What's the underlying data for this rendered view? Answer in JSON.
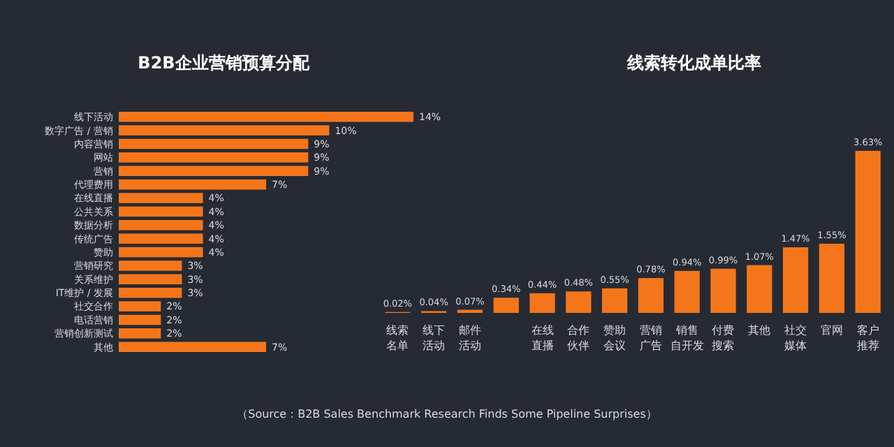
{
  "chart_data": [
    {
      "type": "bar",
      "orientation": "horizontal",
      "title": "B2B企业营销预算分配",
      "categories": [
        "线下活动",
        "数字广告 / 营销",
        "内容营销",
        "网站",
        "营销",
        "代理费用",
        "在线直播",
        "公共关系",
        "数据分析",
        "传统广告",
        "赞助",
        "营销研究",
        "关系维护",
        "IT维护 / 发展",
        "社交合作",
        "电话营销",
        "营销创新测试",
        "其他"
      ],
      "values": [
        14,
        10,
        9,
        9,
        9,
        7,
        4,
        4,
        4,
        4,
        4,
        3,
        3,
        3,
        2,
        2,
        2,
        7
      ],
      "value_labels": [
        "14%",
        "10%",
        "9%",
        "9%",
        "9%",
        "7%",
        "4%",
        "4%",
        "4%",
        "4%",
        "4%",
        "3%",
        "3%",
        "3%",
        "2%",
        "2%",
        "2%",
        "7%"
      ],
      "color": "#f5761a",
      "annotations": [
        "（Source：B2B Sales Benchmark Research Finds Some Pipeline Surprises）"
      ]
    },
    {
      "type": "bar",
      "title": "线索转化成单比率",
      "categories": [
        "线索名单",
        "线下活动",
        "邮件活动",
        null,
        "在线直播",
        "合作伙伴",
        "赞助会议",
        "营销广告",
        "销售自开发",
        "付费搜索",
        "其他",
        "社交媒体",
        "官网",
        "客户推荐"
      ],
      "values": [
        0.02,
        0.04,
        0.07,
        0.34,
        0.44,
        0.48,
        0.55,
        0.78,
        0.94,
        0.99,
        1.07,
        1.47,
        1.55,
        3.63
      ],
      "value_labels": [
        "0.02%",
        "0.04%",
        "0.07%",
        "0.34%",
        "0.44%",
        "0.48%",
        "0.55%",
        "0.78%",
        "0.94%",
        "0.99%",
        "1.07%",
        "1.47%",
        "1.55%",
        "3.63%"
      ],
      "color": "#f5761a"
    }
  ]
}
